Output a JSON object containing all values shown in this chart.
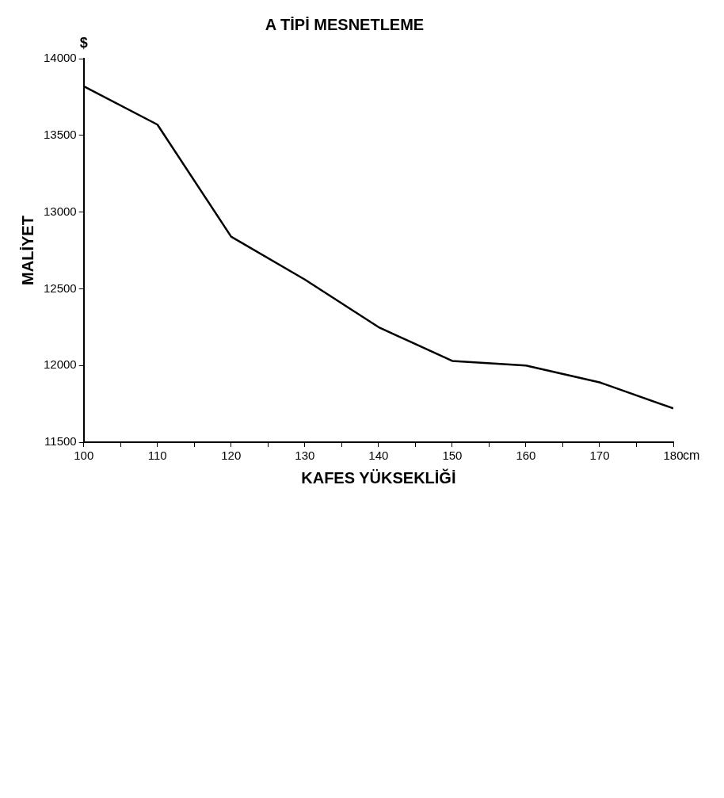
{
  "chart_data": {
    "type": "line",
    "title": "A TİPİ MESNETLEME",
    "xlabel": "KAFES YÜKSEKLİĞİ",
    "ylabel": "MALİYET",
    "annotations": [
      "$",
      "cm"
    ],
    "x": [
      100,
      110,
      120,
      130,
      140,
      150,
      160,
      170,
      180
    ],
    "series": [
      {
        "color": "#000000",
        "values": [
          13820,
          13570,
          12840,
          12560,
          12250,
          12030,
          12000,
          11890,
          11720
        ]
      }
    ],
    "xlim": [
      100,
      180
    ],
    "xticks": [
      100,
      {
        "value": 105,
        "label": null
      },
      110,
      {
        "value": 115,
        "label": null
      },
      120,
      {
        "value": 125,
        "label": null
      },
      130,
      {
        "value": 135,
        "label": null
      },
      140,
      {
        "value": 145,
        "label": null
      },
      150,
      {
        "value": 155,
        "label": null
      },
      160,
      {
        "value": 165,
        "label": null
      },
      170,
      {
        "value": 175,
        "label": null
      },
      180
    ],
    "ylim": [
      11500,
      14000
    ],
    "yticks": [
      11500,
      12000,
      12500,
      13000,
      13500,
      14000
    ],
    "grid": false,
    "legend": false,
    "marker": "none",
    "line_style": "solid"
  }
}
